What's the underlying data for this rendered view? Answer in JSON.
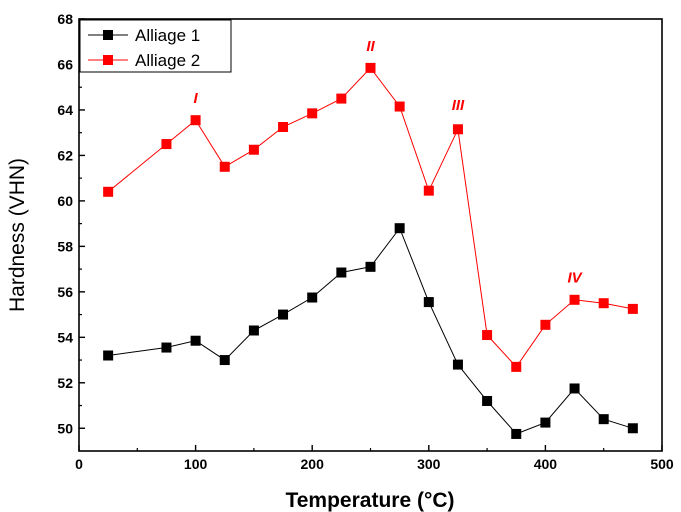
{
  "chart_data": {
    "type": "line",
    "xlabel": "Temperature (°C)",
    "ylabel": "Hardness (VHN)",
    "xlim": [
      0,
      500
    ],
    "ylim": [
      49,
      68
    ],
    "x_ticks": [
      0,
      100,
      200,
      300,
      400,
      500
    ],
    "y_ticks": [
      50,
      52,
      54,
      56,
      58,
      60,
      62,
      64,
      66,
      68
    ],
    "grid": false,
    "legend_position": "top-left",
    "series": [
      {
        "name": "Alliage 1",
        "color": "#000000",
        "marker": "square",
        "x": [
          25,
          75,
          100,
          125,
          150,
          175,
          200,
          225,
          250,
          275,
          300,
          325,
          350,
          375,
          400,
          425,
          450,
          475
        ],
        "y": [
          53.2,
          53.55,
          53.85,
          53.0,
          54.3,
          55.0,
          55.75,
          56.85,
          57.1,
          58.8,
          55.55,
          52.8,
          51.2,
          49.75,
          50.25,
          51.75,
          50.4,
          50.0
        ]
      },
      {
        "name": "Alliage 2",
        "color": "#ff0000",
        "marker": "square",
        "x": [
          25,
          75,
          100,
          125,
          150,
          175,
          200,
          225,
          250,
          275,
          300,
          325,
          350,
          375,
          400,
          425,
          450,
          475
        ],
        "y": [
          60.4,
          62.5,
          63.55,
          61.5,
          62.25,
          63.25,
          63.85,
          64.5,
          65.85,
          64.15,
          60.45,
          63.15,
          54.1,
          52.7,
          54.55,
          55.65,
          55.5,
          55.25
        ]
      }
    ],
    "annotations": [
      {
        "text": "I",
        "x": 100,
        "y": 64.3
      },
      {
        "text": "II",
        "x": 250,
        "y": 66.6
      },
      {
        "text": "III",
        "x": 325,
        "y": 64.0
      },
      {
        "text": "IV",
        "x": 425,
        "y": 56.4
      }
    ]
  }
}
